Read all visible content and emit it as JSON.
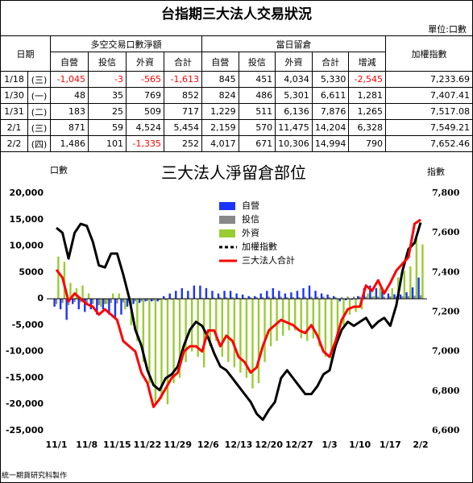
{
  "table": {
    "title": "台指期三大法人交易狀況",
    "unit": "單位:口數",
    "header": {
      "date": "日期",
      "group1": "多空交易口數淨額",
      "group2": "當日留倉",
      "index": "加權指數",
      "sub1": [
        "自營",
        "投信",
        "外資",
        "合計"
      ],
      "sub2": [
        "自營",
        "投信",
        "外資",
        "合計",
        "增減"
      ]
    },
    "rows": [
      [
        "1/18",
        "(三)",
        "-1,045",
        "-3",
        "-565",
        "-1,613",
        "845",
        "451",
        "4,034",
        "5,330",
        "-2,545",
        "7,233.69"
      ],
      [
        "1/30",
        "(一)",
        "48",
        "35",
        "769",
        "852",
        "824",
        "486",
        "5,301",
        "6,611",
        "1,281",
        "7,407.41"
      ],
      [
        "1/31",
        "(二)",
        "183",
        "25",
        "509",
        "717",
        "1,229",
        "511",
        "6,136",
        "7,876",
        "1,265",
        "7,517.08"
      ],
      [
        "2/1",
        "(三)",
        "871",
        "59",
        "4,524",
        "5,454",
        "2,159",
        "570",
        "11,475",
        "14,204",
        "6,328",
        "7,549.21"
      ],
      [
        "2/2",
        "(四)",
        "1,486",
        "101",
        "-1,335",
        "252",
        "4,017",
        "671",
        "10,306",
        "14,994",
        "790",
        "7,652.46"
      ]
    ]
  },
  "chart_data": {
    "type": "bar",
    "title": "三大法人淨留倉部位",
    "y_label": "口數",
    "y2_label": "指數",
    "categories": [
      "11/1",
      null,
      null,
      null,
      null,
      "11/8",
      null,
      null,
      null,
      null,
      "11/15",
      null,
      null,
      null,
      null,
      "11/22",
      null,
      null,
      null,
      null,
      "11/29",
      null,
      null,
      null,
      null,
      "12/6",
      null,
      null,
      null,
      null,
      "12/13",
      null,
      null,
      null,
      null,
      "12/20",
      null,
      null,
      null,
      null,
      "12/27",
      null,
      null,
      null,
      null,
      "1/3",
      null,
      null,
      null,
      null,
      "1/10",
      null,
      null,
      null,
      null,
      "1/17",
      null,
      null,
      null,
      null,
      "2/2"
    ],
    "ylim": [
      -25000,
      20000
    ],
    "yticks": [
      {
        "value": 20000,
        "label": "20,000"
      },
      {
        "value": 15000,
        "label": "15,000"
      },
      {
        "value": 10000,
        "label": "10,000"
      },
      {
        "value": 5000,
        "label": "5000"
      },
      0,
      {
        "value": -5000,
        "label": "-5,000"
      },
      {
        "value": -10000,
        "label": "-10,000"
      },
      {
        "value": -15000,
        "label": "-15,000"
      },
      {
        "value": -20000,
        "label": "-20,000"
      },
      {
        "value": -25000,
        "label": "-25,000"
      }
    ],
    "y2lim": [
      6600,
      7800
    ],
    "y2ticks": [
      {
        "value": 7800,
        "label": "7,800"
      },
      {
        "value": 7600,
        "label": "7,600"
      },
      {
        "value": 7400,
        "label": "7,400"
      },
      {
        "value": 7200,
        "label": "7,200"
      },
      {
        "value": 7000,
        "label": "7,000"
      },
      {
        "value": 6800,
        "label": "6,800"
      },
      {
        "value": 6600,
        "label": "6,600"
      }
    ],
    "legend_position": "upper center",
    "grid": false,
    "series": [
      {
        "name": "自營",
        "type": "bar",
        "color": "#1a33ff",
        "values": [
          -1500,
          -2000,
          -4000,
          -1000,
          -2000,
          -2500,
          -2000,
          -3000,
          -2000,
          -3000,
          -3500,
          -3000,
          -1500,
          -1000,
          -800,
          -500,
          -500,
          -500,
          500,
          1000,
          1500,
          2000,
          1500,
          2500,
          2500,
          2000,
          1500,
          1000,
          1500,
          1500,
          1000,
          800,
          500,
          500,
          1000,
          1500,
          2000,
          1500,
          1000,
          1200,
          1500,
          2000,
          2500,
          1500,
          1000,
          800,
          500,
          -500,
          -300,
          -200,
          500,
          2000,
          2500,
          2000,
          1500,
          1000,
          845,
          824,
          1229,
          2159,
          4017
        ]
      },
      {
        "name": "投信",
        "type": "bar",
        "color": "#888888",
        "values": [
          -1000,
          -800,
          -1200,
          -600,
          -700,
          -900,
          -1000,
          -1200,
          -1000,
          -800,
          -900,
          -700,
          -600,
          -500,
          -500,
          -400,
          -400,
          -300,
          -300,
          -200,
          -200,
          -100,
          100,
          100,
          200,
          200,
          200,
          300,
          300,
          300,
          200,
          200,
          300,
          300,
          300,
          400,
          400,
          400,
          300,
          300,
          300,
          400,
          400,
          400,
          400,
          300,
          300,
          300,
          400,
          400,
          400,
          400,
          400,
          400,
          400,
          450,
          451,
          486,
          511,
          570,
          671
        ]
      },
      {
        "name": "外資",
        "type": "bar",
        "color": "#99cc33",
        "values": [
          8000,
          7000,
          3000,
          2000,
          2500,
          1000,
          0,
          -1500,
          -1000,
          1000,
          1000,
          -2000,
          -5000,
          -8000,
          -12000,
          -16000,
          -20000,
          -19000,
          -20000,
          -16000,
          -15000,
          -12000,
          -10000,
          -11000,
          -13000,
          -9000,
          -8000,
          -11000,
          -12000,
          -13000,
          -14000,
          -15000,
          -17000,
          -16000,
          -12000,
          -9000,
          -8000,
          -7000,
          -6000,
          -6000,
          -7500,
          -8000,
          -7500,
          -9000,
          -11000,
          -12000,
          -8000,
          -5000,
          -3000,
          -2500,
          -2000,
          1000,
          500,
          2000,
          0,
          2000,
          4034,
          5301,
          6136,
          11475,
          10306
        ]
      },
      {
        "name": "加權指數",
        "type": "line",
        "axis": "y2",
        "color": "#000000",
        "values": [
          7625,
          7600,
          7470,
          7600,
          7645,
          7635,
          7555,
          7435,
          7425,
          7495,
          7495,
          7390,
          7270,
          7110,
          7030,
          6905,
          6830,
          6805,
          6865,
          6885,
          6925,
          7030,
          7110,
          7150,
          7130,
          7070,
          6990,
          6925,
          6905,
          6865,
          6825,
          6785,
          6745,
          6685,
          6655,
          6705,
          6745,
          6865,
          6905,
          6865,
          6825,
          6785,
          6785,
          6825,
          6885,
          6905,
          7030,
          7110,
          7150,
          7130,
          7150,
          7170,
          7120,
          7150,
          7170,
          7130,
          7234,
          7407,
          7517,
          7549,
          7652
        ]
      },
      {
        "name": "三大法人合計",
        "type": "line",
        "color": "#ff0000",
        "values": [
          5500,
          4000,
          -500,
          1000,
          0,
          -1000,
          -1500,
          -3000,
          -2000,
          -3000,
          -4000,
          -8000,
          -9000,
          -10000,
          -14000,
          -16000,
          -20500,
          -19000,
          -17000,
          -15000,
          -14000,
          -10000,
          -9000,
          -9000,
          -10000,
          -6000,
          -6000,
          -9000,
          -7000,
          -8000,
          -11000,
          -12000,
          -14000,
          -13000,
          -9000,
          -6000,
          -5000,
          -4000,
          -4500,
          -5000,
          -6000,
          -6500,
          -5000,
          -7000,
          -10000,
          -11000,
          -8000,
          -4000,
          -2000,
          -1500,
          -1500,
          2500,
          1500,
          3500,
          1000,
          3000,
          5330,
          6611,
          7876,
          14204,
          14994
        ]
      }
    ]
  },
  "footer": "統一期貨研究科製作"
}
